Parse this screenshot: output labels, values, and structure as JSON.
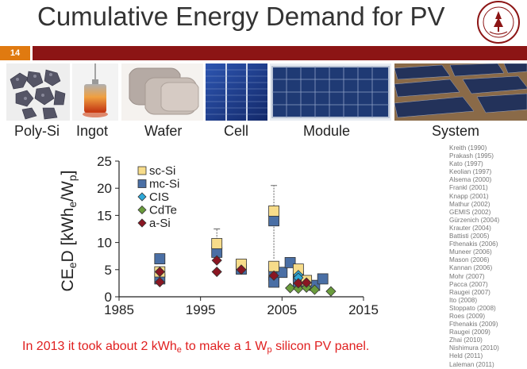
{
  "slide": {
    "title": "Cumulative Energy Demand for PV",
    "number": "14"
  },
  "stages": [
    "Poly-Si",
    "Ingot",
    "Wafer",
    "Cell",
    "Module",
    "System"
  ],
  "chart_data": {
    "type": "scatter",
    "ylabel": "CEeD [kWhe/Wp]",
    "xlim": [
      1985,
      2015
    ],
    "ylim": [
      0,
      25
    ],
    "xticks": [
      "1985",
      "1995",
      "2005",
      "2015"
    ],
    "yticks": [
      "0",
      "5",
      "10",
      "15",
      "20",
      "25"
    ],
    "legend_placement": "top-left",
    "series": [
      {
        "name": "sc-Si",
        "color": "#f7dc8a",
        "marker": "square",
        "points": [
          [
            1990,
            4.6
          ],
          [
            1997,
            9.8
          ],
          [
            2000,
            6.0
          ],
          [
            2004,
            15.8
          ],
          [
            2004,
            5.6
          ],
          [
            2007,
            5.1
          ],
          [
            2008,
            3.0
          ]
        ]
      },
      {
        "name": "mc-Si",
        "color": "#4a6fa5",
        "marker": "square",
        "points": [
          [
            1990,
            7.0
          ],
          [
            1990,
            3.3
          ],
          [
            1997,
            8.2
          ],
          [
            2000,
            5.1
          ],
          [
            2004,
            14.0
          ],
          [
            2004,
            4.0
          ],
          [
            2004,
            2.7
          ],
          [
            2005,
            4.5
          ],
          [
            2006,
            6.3
          ],
          [
            2007,
            3.8
          ],
          [
            2007,
            2.8
          ],
          [
            2008,
            2.6
          ],
          [
            2009,
            2.1
          ],
          [
            2010,
            3.3
          ]
        ]
      },
      {
        "name": "CIS",
        "color": "#2ea8d8",
        "marker": "diamond",
        "points": [
          [
            2007,
            4.0
          ],
          [
            2007,
            3.5
          ],
          [
            2008,
            2.6
          ]
        ]
      },
      {
        "name": "CdTe",
        "color": "#6a9c3c",
        "marker": "diamond",
        "points": [
          [
            2006,
            1.6
          ],
          [
            2007,
            1.5
          ],
          [
            2008,
            1.7
          ],
          [
            2009,
            1.3
          ],
          [
            2011,
            1.0
          ]
        ]
      },
      {
        "name": "a-Si",
        "color": "#8a1622",
        "marker": "diamond",
        "points": [
          [
            1990,
            4.6
          ],
          [
            1990,
            2.7
          ],
          [
            1997,
            6.7
          ],
          [
            1997,
            4.6
          ],
          [
            2000,
            5.0
          ],
          [
            2004,
            3.9
          ],
          [
            2007,
            2.5
          ],
          [
            2008,
            2.6
          ]
        ]
      }
    ],
    "error_bars": [
      {
        "x": 1997,
        "y_low": 7.0,
        "y_high": 12.5
      },
      {
        "x": 2004,
        "y_low": 7.0,
        "y_high": 20.5
      }
    ]
  },
  "references": [
    "Kreith (1990)",
    "Prakash (1995)",
    "Kato (1997)",
    "Keolian (1997)",
    "Alsema (2000)",
    "Frankl (2001)",
    "Knapp (2001)",
    "Mathur (2002)",
    "GEMIS (2002)",
    "Gürzenich (2004)",
    "Krauter (2004)",
    "Battisti (2005)",
    "Fthenakis (2006)",
    "Muneer (2006)",
    "Mason (2006)",
    "Kannan (2006)",
    "Mohr (2007)",
    "Pacca (2007)",
    "Raugei (2007)",
    "Ito (2008)",
    "Stoppato (2008)",
    "Roes (2009)",
    "Fthenakis (2009)",
    "Raugei (2009)",
    "Zhai (2010)",
    "Nishimura (2010)",
    "Held (2011)",
    "Laleman (2011)"
  ],
  "footer": {
    "p1": "In 2013 it took about 2 kWh",
    "s1": "e",
    "p2": " to make a 1 W",
    "s2": "p",
    "p3": " silicon PV panel."
  }
}
